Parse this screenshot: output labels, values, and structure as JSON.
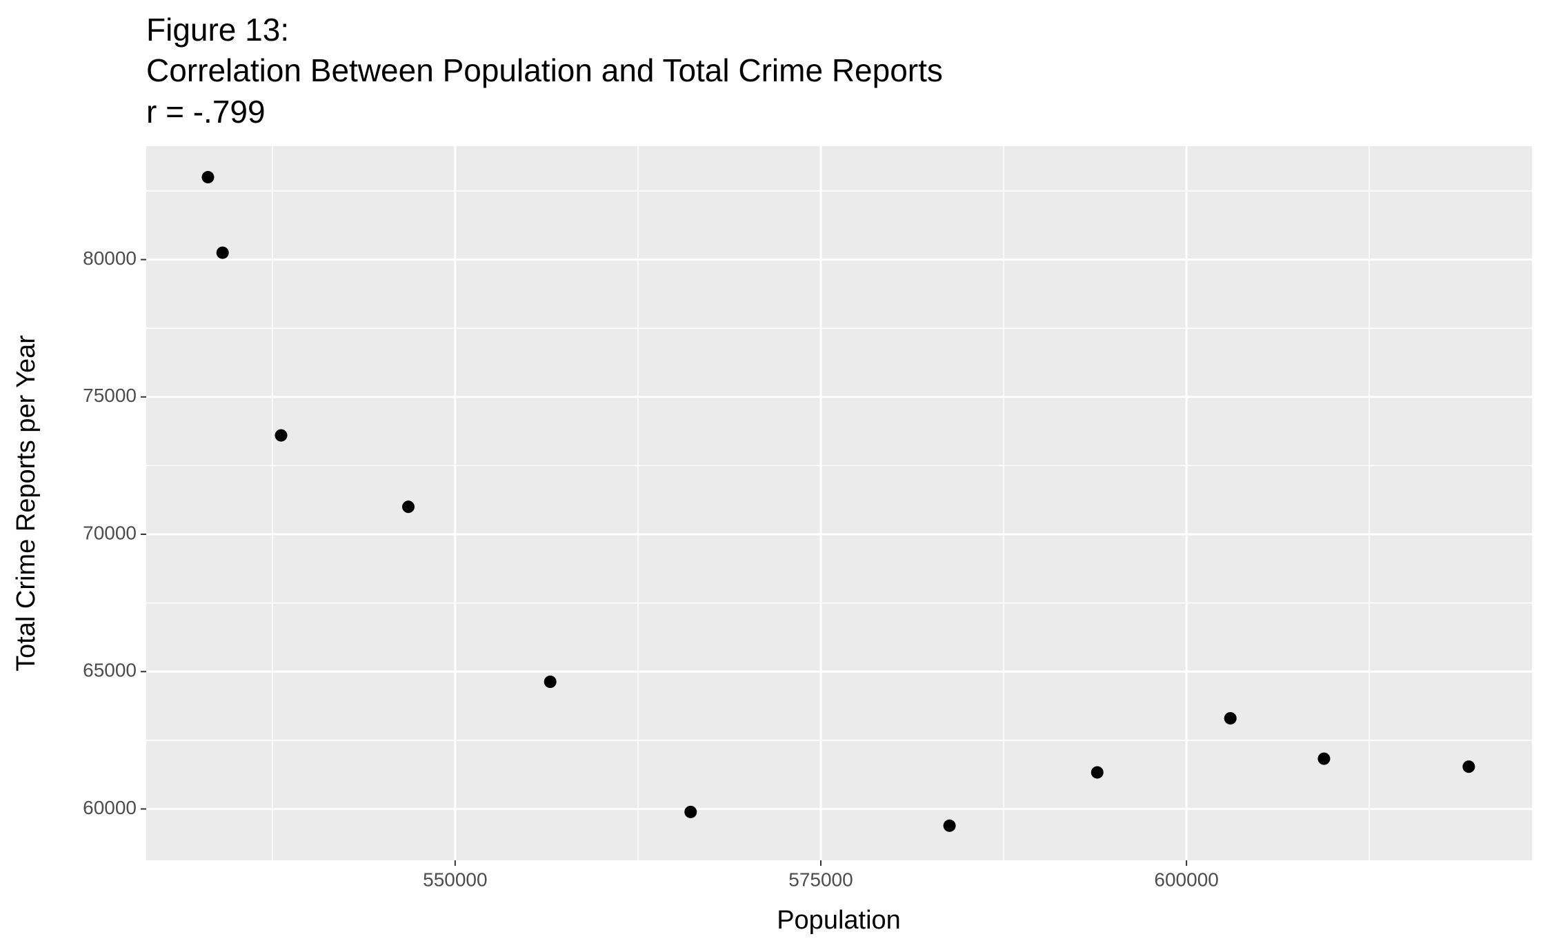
{
  "chart_data": {
    "type": "scatter",
    "title": [
      "Figure 13:",
      "Correlation Between Population and Total Crime Reports",
      "r = -.799"
    ],
    "x_label": "Population",
    "y_label": "Total Crime Reports per Year",
    "x": [
      533100,
      534100,
      538100,
      546800,
      556500,
      566100,
      583800,
      593900,
      603000,
      609400,
      619300
    ],
    "y": [
      83000,
      80250,
      73600,
      71000,
      64630,
      59890,
      59390,
      61330,
      63300,
      61830,
      61540
    ],
    "color": "#000000",
    "xlim": [
      528880,
      623620
    ],
    "ylim": [
      58130,
      84130
    ],
    "xticks": [
      550000,
      575000,
      600000
    ],
    "yticks": [
      60000,
      65000,
      70000,
      75000,
      80000
    ],
    "minor_xticks": [
      537500,
      562500,
      587500,
      612500
    ],
    "minor_yticks": [
      62500,
      67500,
      72500,
      77500,
      82500
    ],
    "grid": true
  }
}
